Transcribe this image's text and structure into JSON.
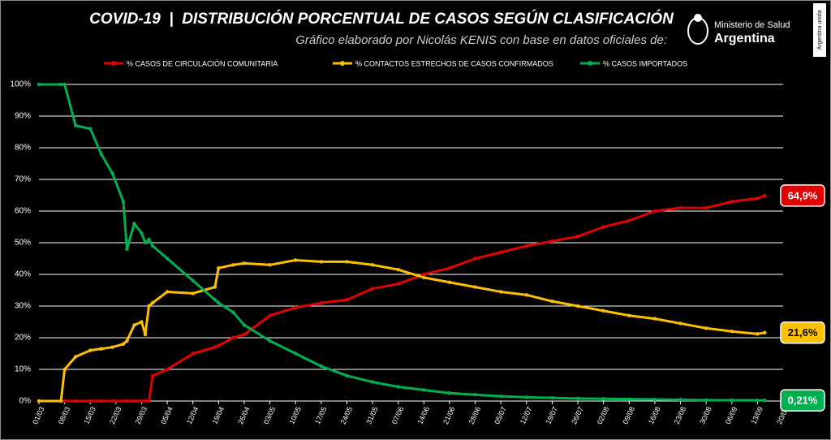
{
  "header": {
    "title": "COVID-19  |  DISTRIBUCIÓN PORCENTUAL DE CASOS SEGÚN CLASIFICACIÓN",
    "subtitle": "Gráfico elaborado por Nicolás KENIS con base en datos oficiales de:",
    "logo_line1": "Ministerio de Salud",
    "logo_line2": "Argentina",
    "side_tag": "Argentina unida"
  },
  "chart_data": {
    "type": "line",
    "x": [
      "01/03",
      "07/03",
      "08/03",
      "11/03",
      "15/03",
      "18/03",
      "21/03",
      "24/03",
      "25/03",
      "27/03",
      "29/03",
      "30/03",
      "31/03",
      "01/04",
      "05/04",
      "12/04",
      "18/04",
      "19/04",
      "23/04",
      "26/04",
      "03/05",
      "10/05",
      "17/05",
      "24/05",
      "31/05",
      "07/06",
      "14/06",
      "21/06",
      "28/06",
      "05/07",
      "12/07",
      "19/07",
      "26/07",
      "02/08",
      "09/08",
      "16/08",
      "23/08",
      "30/08",
      "06/09",
      "13/09",
      "15/09"
    ],
    "series": [
      {
        "name": "% CASOS DE CIRCULACIÓN COMUNITARIA",
        "color": "#e00000",
        "end_label": "64,9%",
        "values": [
          0,
          0,
          0,
          0,
          0,
          0,
          0,
          0,
          0,
          0,
          0,
          0,
          0,
          8,
          10,
          15,
          17,
          17.5,
          20,
          21,
          27,
          29.5,
          31,
          32,
          35.5,
          37,
          40,
          42,
          45,
          47,
          49,
          50.5,
          52,
          55,
          57,
          60,
          61,
          61,
          63,
          64,
          64.9
        ]
      },
      {
        "name": "% CONTACTOS ESTRECHOS DE CASOS CONFIRMADOS",
        "color": "#ffc000",
        "end_label": "21,6%",
        "values": [
          0,
          0,
          10,
          14,
          16,
          16.5,
          17,
          18,
          19,
          24,
          25,
          21,
          30,
          31,
          34.5,
          34,
          36,
          42,
          43,
          43.5,
          43,
          44.5,
          44,
          44,
          43,
          41.5,
          39,
          37.5,
          36,
          34.5,
          33.5,
          31.5,
          30,
          28.5,
          27,
          26,
          24.5,
          23,
          22,
          21.2,
          21.6
        ]
      },
      {
        "name": "% CASOS IMPORTADOS",
        "color": "#00b050",
        "end_label": "0,21%",
        "values": [
          100,
          100,
          100,
          87,
          86,
          78,
          72,
          63,
          48,
          56,
          53,
          50,
          51,
          49,
          45,
          38,
          32,
          31,
          28,
          24,
          19,
          15,
          11,
          8,
          6,
          4.5,
          3.5,
          2.5,
          2,
          1.5,
          1.2,
          1,
          0.8,
          0.7,
          0.6,
          0.5,
          0.4,
          0.3,
          0.25,
          0.22,
          0.21
        ]
      }
    ],
    "xlim": [
      "01/03",
      "20/09"
    ],
    "xticks": [
      "01/03",
      "08/03",
      "15/03",
      "22/03",
      "29/03",
      "05/04",
      "12/04",
      "19/04",
      "26/04",
      "03/05",
      "10/05",
      "17/05",
      "24/05",
      "31/05",
      "07/06",
      "14/06",
      "21/06",
      "28/06",
      "05/07",
      "12/07",
      "19/07",
      "26/07",
      "02/08",
      "09/08",
      "16/08",
      "23/08",
      "30/08",
      "06/09",
      "13/09",
      "20/09"
    ],
    "ylim": [
      0,
      100
    ],
    "yticks": [
      {
        "value": 0,
        "label": "0%"
      },
      {
        "value": 10,
        "label": "10%"
      },
      {
        "value": 20,
        "label": "20%"
      },
      {
        "value": 30,
        "label": "30%"
      },
      {
        "value": 40,
        "label": "40%"
      },
      {
        "value": 50,
        "label": "50%"
      },
      {
        "value": 60,
        "label": "60%"
      },
      {
        "value": 70,
        "label": "70%"
      },
      {
        "value": 80,
        "label": "80%"
      },
      {
        "value": 90,
        "label": "90%"
      },
      {
        "value": 100,
        "label": "100%"
      }
    ],
    "grid": true
  }
}
